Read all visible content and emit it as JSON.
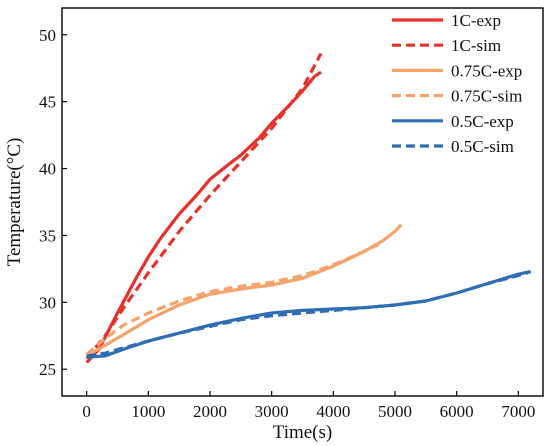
{
  "chart_data": {
    "type": "line",
    "title": "",
    "xlabel": "Time(s)",
    "ylabel": "Temperature(°C)",
    "xlim": [
      -400,
      7400
    ],
    "ylim": [
      23,
      52
    ],
    "x_ticks": [
      0,
      1000,
      2000,
      3000,
      4000,
      5000,
      6000,
      7000
    ],
    "x_tick_labels": [
      "0",
      "1000",
      "2000",
      "3000",
      "4000",
      "5000",
      "6000",
      "7000"
    ],
    "y_ticks": [
      25,
      30,
      35,
      40,
      45,
      50
    ],
    "y_tick_labels": [
      "25",
      "30",
      "35",
      "40",
      "45",
      "50"
    ],
    "grid": false,
    "legend_position": "top-right",
    "series": [
      {
        "name": "1C-exp",
        "color": "#e8302a",
        "dash": "solid",
        "points": [
          [
            0,
            25.5
          ],
          [
            200,
            26.5
          ],
          [
            500,
            29.2
          ],
          [
            800,
            31.8
          ],
          [
            1000,
            33.4
          ],
          [
            1200,
            34.8
          ],
          [
            1500,
            36.6
          ],
          [
            1800,
            38.1
          ],
          [
            2000,
            39.2
          ],
          [
            2300,
            40.3
          ],
          [
            2500,
            41.0
          ],
          [
            2800,
            42.3
          ],
          [
            3000,
            43.4
          ],
          [
            3300,
            44.8
          ],
          [
            3500,
            45.8
          ],
          [
            3700,
            46.9
          ],
          [
            3800,
            47.2
          ]
        ]
      },
      {
        "name": "1C-sim",
        "color": "#e8302a",
        "dash": "dashed",
        "points": [
          [
            0,
            25.8
          ],
          [
            300,
            27.5
          ],
          [
            600,
            29.6
          ],
          [
            1000,
            32.2
          ],
          [
            1500,
            35.3
          ],
          [
            2000,
            38.0
          ],
          [
            2500,
            40.5
          ],
          [
            3000,
            43.0
          ],
          [
            3500,
            46.0
          ],
          [
            3800,
            48.6
          ]
        ]
      },
      {
        "name": "0.75C-exp",
        "color": "#f5a26b",
        "dash": "solid",
        "points": [
          [
            0,
            26.0
          ],
          [
            300,
            26.8
          ],
          [
            600,
            27.6
          ],
          [
            1000,
            28.7
          ],
          [
            1500,
            29.8
          ],
          [
            2000,
            30.6
          ],
          [
            2500,
            31.0
          ],
          [
            3000,
            31.3
          ],
          [
            3500,
            31.8
          ],
          [
            4000,
            32.7
          ],
          [
            4500,
            33.8
          ],
          [
            4800,
            34.6
          ],
          [
            5000,
            35.3
          ],
          [
            5100,
            35.8
          ]
        ]
      },
      {
        "name": "0.75C-sim",
        "color": "#f5a26b",
        "dash": "dashed",
        "points": [
          [
            0,
            26.1
          ],
          [
            300,
            27.3
          ],
          [
            600,
            28.3
          ],
          [
            1000,
            29.2
          ],
          [
            1500,
            30.1
          ],
          [
            2000,
            30.8
          ],
          [
            2500,
            31.2
          ],
          [
            3000,
            31.5
          ],
          [
            3500,
            32.0
          ],
          [
            4000,
            32.8
          ],
          [
            4500,
            33.8
          ],
          [
            4800,
            34.5
          ]
        ]
      },
      {
        "name": "0.5C-exp",
        "color": "#2f6db5",
        "dash": "solid",
        "points": [
          [
            0,
            25.9
          ],
          [
            300,
            26.0
          ],
          [
            600,
            26.5
          ],
          [
            1000,
            27.1
          ],
          [
            1500,
            27.7
          ],
          [
            2000,
            28.3
          ],
          [
            2500,
            28.8
          ],
          [
            3000,
            29.2
          ],
          [
            3500,
            29.4
          ],
          [
            4000,
            29.5
          ],
          [
            4500,
            29.6
          ],
          [
            5000,
            29.8
          ],
          [
            5500,
            30.1
          ],
          [
            6000,
            30.7
          ],
          [
            6500,
            31.4
          ],
          [
            7000,
            32.1
          ],
          [
            7200,
            32.3
          ]
        ]
      },
      {
        "name": "0.5C-sim",
        "color": "#2f6db5",
        "dash": "dashed",
        "points": [
          [
            0,
            26.0
          ],
          [
            300,
            26.2
          ],
          [
            600,
            26.6
          ],
          [
            1000,
            27.1
          ],
          [
            1500,
            27.7
          ],
          [
            2000,
            28.2
          ],
          [
            2500,
            28.7
          ],
          [
            3000,
            29.0
          ],
          [
            3500,
            29.2
          ],
          [
            4000,
            29.4
          ],
          [
            4500,
            29.6
          ],
          [
            5000,
            29.8
          ],
          [
            5500,
            30.1
          ],
          [
            6000,
            30.7
          ],
          [
            6500,
            31.4
          ],
          [
            7000,
            32.0
          ],
          [
            7200,
            32.3
          ]
        ]
      }
    ]
  }
}
